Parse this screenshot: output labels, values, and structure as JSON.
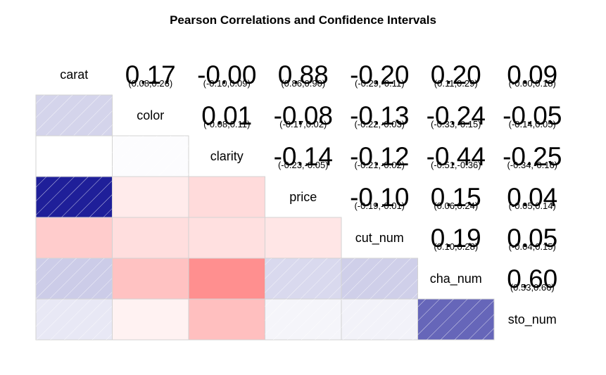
{
  "chart_data": {
    "type": "heatmap",
    "title": "Pearson Correlations and Confidence Intervals",
    "variables": [
      "carat",
      "color",
      "clarity",
      "price",
      "cut_num",
      "cha_num",
      "sto_num"
    ],
    "color_scale": {
      "negative": "#ff0000",
      "zero": "#ffffff",
      "positive": "#00008b"
    },
    "upper_triangle": [
      {
        "row": "carat",
        "col": "color",
        "value": "0.17",
        "ci": "(0.08,0.26)"
      },
      {
        "row": "carat",
        "col": "clarity",
        "value": "-0.00",
        "ci": "(-0.10,0.09)"
      },
      {
        "row": "carat",
        "col": "price",
        "value": "0.88",
        "ci": "(0.86,0.90)"
      },
      {
        "row": "carat",
        "col": "cut_num",
        "value": "-0.20",
        "ci": "(-0.29,-0.11)"
      },
      {
        "row": "carat",
        "col": "cha_num",
        "value": "0.20",
        "ci": "(0.11,0.29)"
      },
      {
        "row": "carat",
        "col": "sto_num",
        "value": "0.09",
        "ci": "(-0.00,0.18)"
      },
      {
        "row": "color",
        "col": "clarity",
        "value": "0.01",
        "ci": "(-0.08,0.11)"
      },
      {
        "row": "color",
        "col": "price",
        "value": "-0.08",
        "ci": "(-0.17,0.02)"
      },
      {
        "row": "color",
        "col": "cut_num",
        "value": "-0.13",
        "ci": "(-0.22,-0.03)"
      },
      {
        "row": "color",
        "col": "cha_num",
        "value": "-0.24",
        "ci": "(-0.33,-0.15)"
      },
      {
        "row": "color",
        "col": "sto_num",
        "value": "-0.05",
        "ci": "(-0.14,0.05)"
      },
      {
        "row": "clarity",
        "col": "price",
        "value": "-0.14",
        "ci": "(-0.23,-0.05)"
      },
      {
        "row": "clarity",
        "col": "cut_num",
        "value": "-0.12",
        "ci": "(-0.21,-0.02)"
      },
      {
        "row": "clarity",
        "col": "cha_num",
        "value": "-0.44",
        "ci": "(-0.51,-0.36)"
      },
      {
        "row": "clarity",
        "col": "sto_num",
        "value": "-0.25",
        "ci": "(-0.34,-0.16)"
      },
      {
        "row": "price",
        "col": "cut_num",
        "value": "-0.10",
        "ci": "(-0.19,-0.01)"
      },
      {
        "row": "price",
        "col": "cha_num",
        "value": "0.15",
        "ci": "(0.06,0.24)"
      },
      {
        "row": "price",
        "col": "sto_num",
        "value": "0.04",
        "ci": "(-0.05,0.14)"
      },
      {
        "row": "cut_num",
        "col": "cha_num",
        "value": "0.19",
        "ci": "(0.10,0.28)"
      },
      {
        "row": "cut_num",
        "col": "sto_num",
        "value": "0.05",
        "ci": "(-0.04,0.15)"
      },
      {
        "row": "cha_num",
        "col": "sto_num",
        "value": "0.60",
        "ci": "(0.53,0.66)"
      }
    ]
  }
}
